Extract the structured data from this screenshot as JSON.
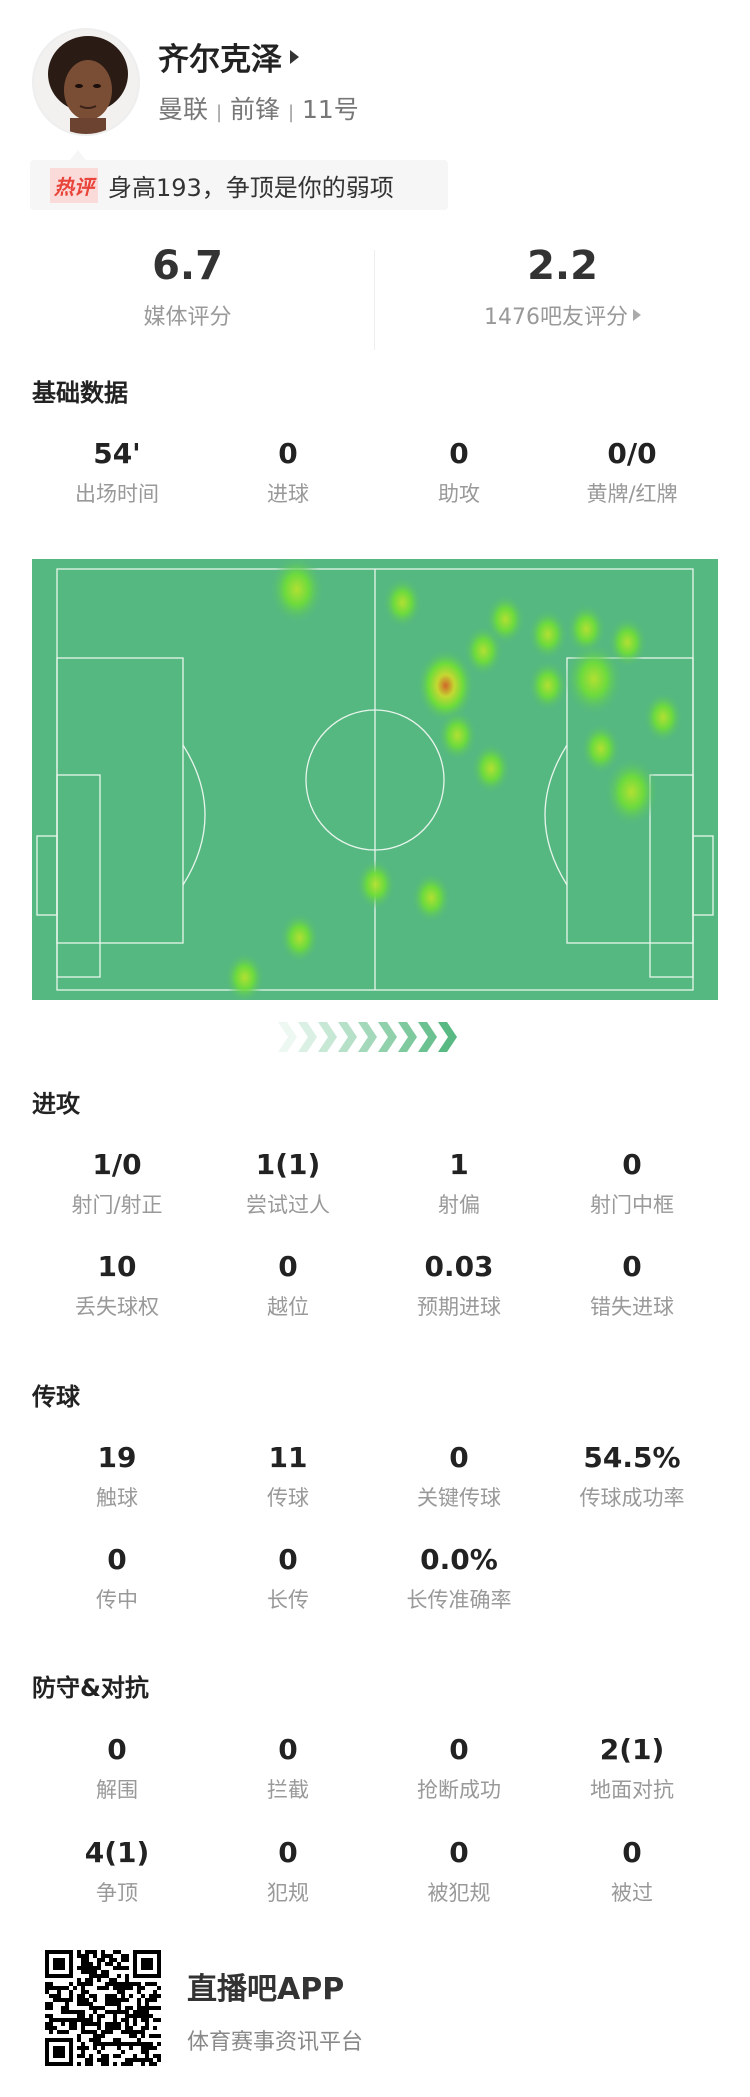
{
  "player": {
    "name": "齐尔克泽",
    "team": "曼联",
    "position": "前锋",
    "number": "11号",
    "sep": "|"
  },
  "hot_comment": {
    "tag": "热评",
    "text": "身高193，争顶是你的弱项"
  },
  "ratings": [
    {
      "value": "6.7",
      "label": "媒体评分"
    },
    {
      "value": "2.2",
      "label": "1476吧友评分"
    }
  ],
  "sections": {
    "basic": {
      "title": "基础数据",
      "rows": [
        [
          {
            "v": "54'",
            "l": "出场时间"
          },
          {
            "v": "0",
            "l": "进球"
          },
          {
            "v": "0",
            "l": "助攻"
          },
          {
            "v": "0/0",
            "l": "黄牌/红牌"
          }
        ]
      ]
    },
    "attack": {
      "title": "进攻",
      "rows": [
        [
          {
            "v": "1/0",
            "l": "射门/射正"
          },
          {
            "v": "1(1)",
            "l": "尝试过人"
          },
          {
            "v": "1",
            "l": "射偏"
          },
          {
            "v": "0",
            "l": "射门中框"
          }
        ],
        [
          {
            "v": "10",
            "l": "丢失球权"
          },
          {
            "v": "0",
            "l": "越位"
          },
          {
            "v": "0.03",
            "l": "预期进球"
          },
          {
            "v": "0",
            "l": "错失进球"
          }
        ]
      ]
    },
    "passing": {
      "title": "传球",
      "rows": [
        [
          {
            "v": "19",
            "l": "触球"
          },
          {
            "v": "11",
            "l": "传球"
          },
          {
            "v": "0",
            "l": "关键传球"
          },
          {
            "v": "54.5%",
            "l": "传球成功率"
          }
        ],
        [
          {
            "v": "0",
            "l": "传中"
          },
          {
            "v": "0",
            "l": "长传"
          },
          {
            "v": "0.0%",
            "l": "长传准确率"
          }
        ]
      ]
    },
    "defense": {
      "title": "防守&对抗",
      "rows": [
        [
          {
            "v": "0",
            "l": "解围"
          },
          {
            "v": "0",
            "l": "拦截"
          },
          {
            "v": "0",
            "l": "抢断成功"
          },
          {
            "v": "2(1)",
            "l": "地面对抗"
          }
        ],
        [
          {
            "v": "4(1)",
            "l": "争顶"
          },
          {
            "v": "0",
            "l": "犯规"
          },
          {
            "v": "0",
            "l": "被犯规"
          },
          {
            "v": "0",
            "l": "被过"
          }
        ]
      ]
    }
  },
  "heatmap": {
    "pitch_color": "#55b880",
    "line_color": "#e8f5ec",
    "direction": "attacking-right"
  },
  "footer": {
    "app_name": "直播吧APP",
    "tagline": "体育赛事资讯平台"
  }
}
